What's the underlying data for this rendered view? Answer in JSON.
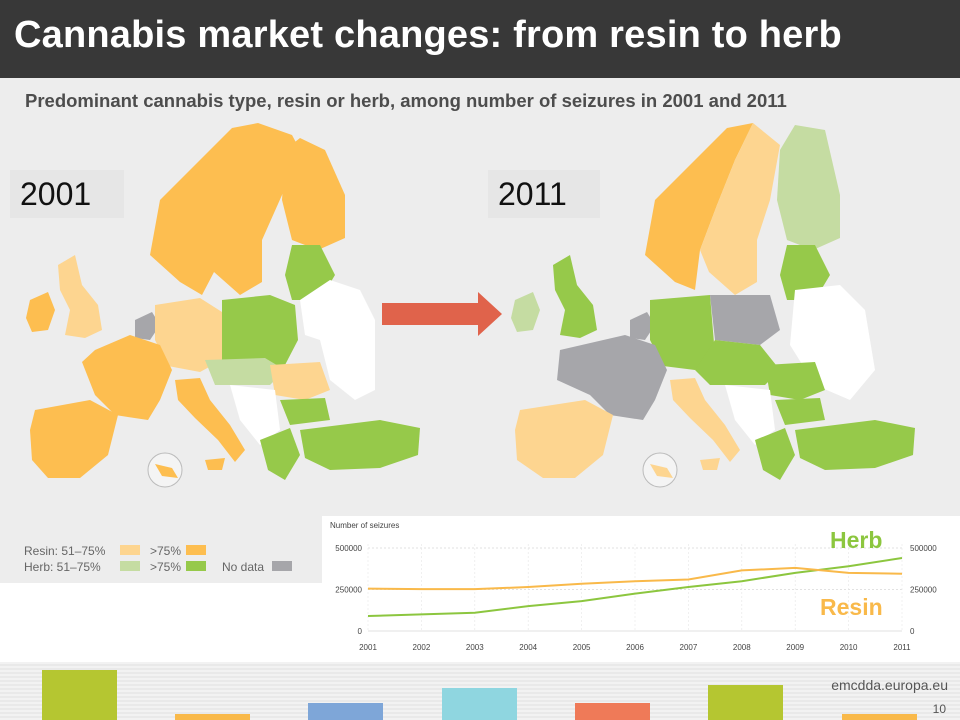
{
  "slide": {
    "title": "Cannabis market changes: from resin to herb",
    "subtitle": "Predominant cannabis type, resin or herb, among number of seizures in 2001 and 2011",
    "page_number": "10",
    "website": "emcdda.europa.eu"
  },
  "maps": {
    "left_year": "2001",
    "right_year": "2011",
    "arrow_icon": "right-arrow-icon"
  },
  "legend": {
    "resin_label": "Resin: 51–75%",
    "herb_label": "Herb:  51–75%",
    "gt75_label": ">75%",
    "no_data_label": "No data"
  },
  "colors": {
    "resin_51_75": "#fdd590",
    "resin_gt75": "#fdbe50",
    "herb_51_75": "#c5dca2",
    "herb_gt75": "#96c94a",
    "no_data": "#a6a6aa",
    "non_eu": "#ffffff",
    "arrow": "#e0634b",
    "header_bg": "#383838"
  },
  "chart_data": {
    "type": "line",
    "title": "Number of seizures",
    "x": [
      "2001",
      "2002",
      "2003",
      "2004",
      "2005",
      "2006",
      "2007",
      "2008",
      "2009",
      "2010",
      "2011"
    ],
    "ylim": [
      0,
      500000
    ],
    "yticks": [
      "500000",
      "250000",
      "0"
    ],
    "series": [
      {
        "name": "Herb",
        "color": "#8cc63f",
        "values": [
          90000,
          100000,
          110000,
          150000,
          180000,
          225000,
          265000,
          300000,
          350000,
          390000,
          440000
        ]
      },
      {
        "name": "Resin",
        "color": "#f9b94a",
        "values": [
          255000,
          252000,
          252000,
          265000,
          285000,
          300000,
          310000,
          365000,
          380000,
          350000,
          345000
        ]
      }
    ]
  }
}
